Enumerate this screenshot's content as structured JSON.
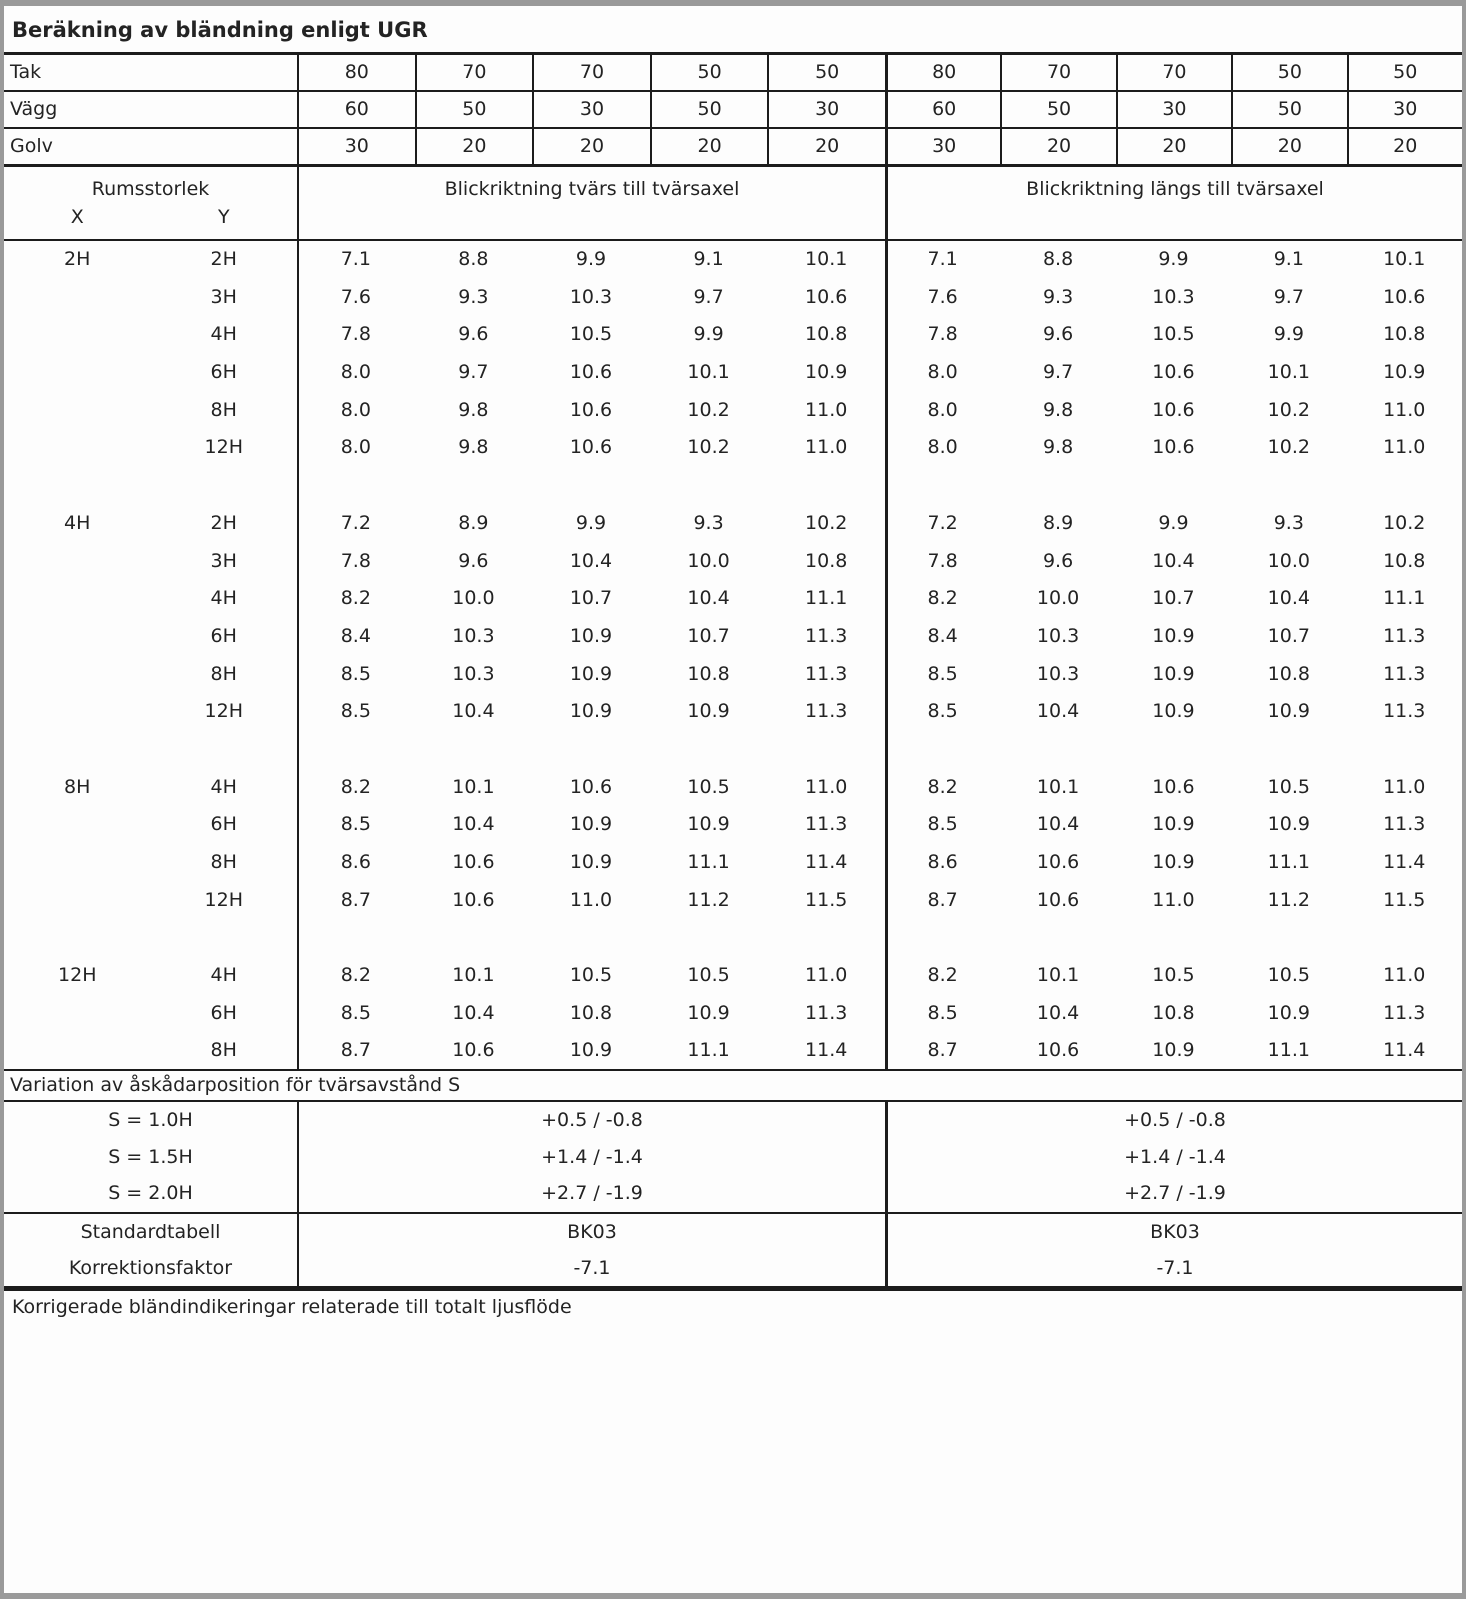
{
  "title": "Beräkning av bländning enligt UGR",
  "colors": {
    "frame": "#9a9a9a",
    "border": "#1c1c1c",
    "text": "#232323",
    "background": "#fdfdfd"
  },
  "surface_rows": [
    {
      "label": "Tak",
      "values": [
        "80",
        "70",
        "70",
        "50",
        "50",
        "80",
        "70",
        "70",
        "50",
        "50"
      ]
    },
    {
      "label": "Vägg",
      "values": [
        "60",
        "50",
        "30",
        "50",
        "30",
        "60",
        "50",
        "30",
        "50",
        "30"
      ]
    },
    {
      "label": "Golv",
      "values": [
        "30",
        "20",
        "20",
        "20",
        "20",
        "30",
        "20",
        "20",
        "20",
        "20"
      ]
    }
  ],
  "header": {
    "room_size_label": "Rumsstorlek",
    "x_label": "X",
    "y_label": "Y",
    "left_caption": "Blickriktning tvärs till tvärsaxel",
    "right_caption": "Blickriktning längs till tvärsaxel"
  },
  "blocks": [
    {
      "x": "2H",
      "rows": [
        {
          "y": "2H",
          "left": [
            "7.1",
            "8.8",
            "9.9",
            "9.1",
            "10.1"
          ],
          "right": [
            "7.1",
            "8.8",
            "9.9",
            "9.1",
            "10.1"
          ]
        },
        {
          "y": "3H",
          "left": [
            "7.6",
            "9.3",
            "10.3",
            "9.7",
            "10.6"
          ],
          "right": [
            "7.6",
            "9.3",
            "10.3",
            "9.7",
            "10.6"
          ]
        },
        {
          "y": "4H",
          "left": [
            "7.8",
            "9.6",
            "10.5",
            "9.9",
            "10.8"
          ],
          "right": [
            "7.8",
            "9.6",
            "10.5",
            "9.9",
            "10.8"
          ]
        },
        {
          "y": "6H",
          "left": [
            "8.0",
            "9.7",
            "10.6",
            "10.1",
            "10.9"
          ],
          "right": [
            "8.0",
            "9.7",
            "10.6",
            "10.1",
            "10.9"
          ]
        },
        {
          "y": "8H",
          "left": [
            "8.0",
            "9.8",
            "10.6",
            "10.2",
            "11.0"
          ],
          "right": [
            "8.0",
            "9.8",
            "10.6",
            "10.2",
            "11.0"
          ]
        },
        {
          "y": "12H",
          "left": [
            "8.0",
            "9.8",
            "10.6",
            "10.2",
            "11.0"
          ],
          "right": [
            "8.0",
            "9.8",
            "10.6",
            "10.2",
            "11.0"
          ]
        }
      ]
    },
    {
      "x": "4H",
      "rows": [
        {
          "y": "2H",
          "left": [
            "7.2",
            "8.9",
            "9.9",
            "9.3",
            "10.2"
          ],
          "right": [
            "7.2",
            "8.9",
            "9.9",
            "9.3",
            "10.2"
          ]
        },
        {
          "y": "3H",
          "left": [
            "7.8",
            "9.6",
            "10.4",
            "10.0",
            "10.8"
          ],
          "right": [
            "7.8",
            "9.6",
            "10.4",
            "10.0",
            "10.8"
          ]
        },
        {
          "y": "4H",
          "left": [
            "8.2",
            "10.0",
            "10.7",
            "10.4",
            "11.1"
          ],
          "right": [
            "8.2",
            "10.0",
            "10.7",
            "10.4",
            "11.1"
          ]
        },
        {
          "y": "6H",
          "left": [
            "8.4",
            "10.3",
            "10.9",
            "10.7",
            "11.3"
          ],
          "right": [
            "8.4",
            "10.3",
            "10.9",
            "10.7",
            "11.3"
          ]
        },
        {
          "y": "8H",
          "left": [
            "8.5",
            "10.3",
            "10.9",
            "10.8",
            "11.3"
          ],
          "right": [
            "8.5",
            "10.3",
            "10.9",
            "10.8",
            "11.3"
          ]
        },
        {
          "y": "12H",
          "left": [
            "8.5",
            "10.4",
            "10.9",
            "10.9",
            "11.3"
          ],
          "right": [
            "8.5",
            "10.4",
            "10.9",
            "10.9",
            "11.3"
          ]
        }
      ]
    },
    {
      "x": "8H",
      "rows": [
        {
          "y": "4H",
          "left": [
            "8.2",
            "10.1",
            "10.6",
            "10.5",
            "11.0"
          ],
          "right": [
            "8.2",
            "10.1",
            "10.6",
            "10.5",
            "11.0"
          ]
        },
        {
          "y": "6H",
          "left": [
            "8.5",
            "10.4",
            "10.9",
            "10.9",
            "11.3"
          ],
          "right": [
            "8.5",
            "10.4",
            "10.9",
            "10.9",
            "11.3"
          ]
        },
        {
          "y": "8H",
          "left": [
            "8.6",
            "10.6",
            "10.9",
            "11.1",
            "11.4"
          ],
          "right": [
            "8.6",
            "10.6",
            "10.9",
            "11.1",
            "11.4"
          ]
        },
        {
          "y": "12H",
          "left": [
            "8.7",
            "10.6",
            "11.0",
            "11.2",
            "11.5"
          ],
          "right": [
            "8.7",
            "10.6",
            "11.0",
            "11.2",
            "11.5"
          ]
        }
      ]
    },
    {
      "x": "12H",
      "rows": [
        {
          "y": "4H",
          "left": [
            "8.2",
            "10.1",
            "10.5",
            "10.5",
            "11.0"
          ],
          "right": [
            "8.2",
            "10.1",
            "10.5",
            "10.5",
            "11.0"
          ]
        },
        {
          "y": "6H",
          "left": [
            "8.5",
            "10.4",
            "10.8",
            "10.9",
            "11.3"
          ],
          "right": [
            "8.5",
            "10.4",
            "10.8",
            "10.9",
            "11.3"
          ]
        },
        {
          "y": "8H",
          "left": [
            "8.7",
            "10.6",
            "10.9",
            "11.1",
            "11.4"
          ],
          "right": [
            "8.7",
            "10.6",
            "10.9",
            "11.1",
            "11.4"
          ]
        }
      ]
    }
  ],
  "variation": {
    "caption": "Variation av åskådarposition för tvärsavstånd S",
    "rows": [
      {
        "label": "S = 1.0H",
        "left": "+0.5 / -0.8",
        "right": "+0.5 / -0.8"
      },
      {
        "label": "S = 1.5H",
        "left": "+1.4 / -1.4",
        "right": "+1.4 / -1.4"
      },
      {
        "label": "S = 2.0H",
        "left": "+2.7 / -1.9",
        "right": "+2.7 / -1.9"
      }
    ]
  },
  "standard": {
    "rows": [
      {
        "label": "Standardtabell",
        "left": "BK03",
        "right": "BK03"
      },
      {
        "label": "Korrektionsfaktor",
        "left": "-7.1",
        "right": "-7.1"
      }
    ]
  },
  "footer": "Korrigerade bländindikeringar relaterade till totalt ljusflöde"
}
